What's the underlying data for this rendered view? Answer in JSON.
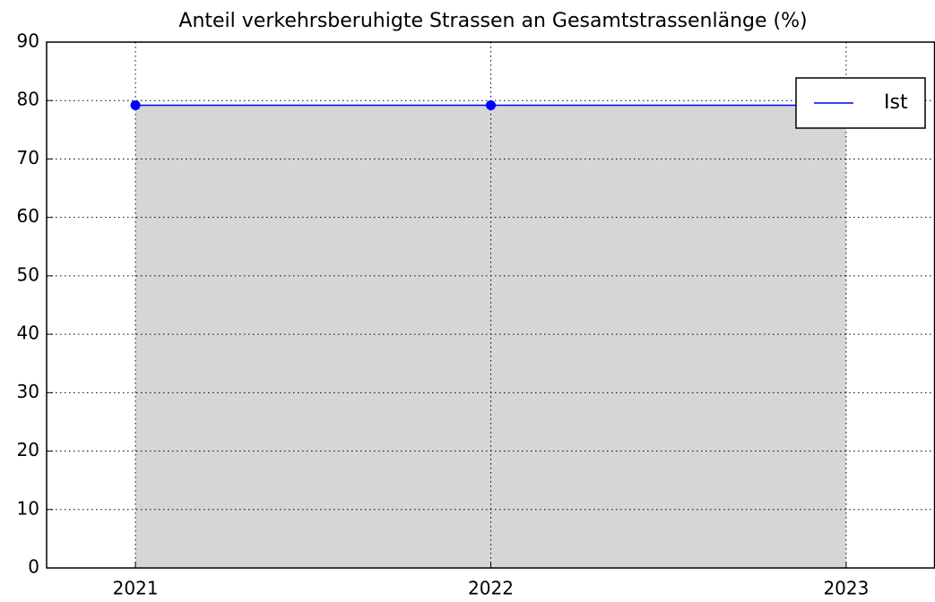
{
  "chart_data": {
    "type": "line",
    "title": "Anteil verkehrsberuhigte Strassen an Gesamtstrassenlänge (%)",
    "x": [
      2021,
      2022,
      2023
    ],
    "series": [
      {
        "name": "Ist",
        "color": "#0000ff",
        "values": [
          79.2,
          79.2,
          79.2
        ]
      }
    ],
    "fill_color": "#d6d6d6",
    "xlim": [
      2020.75,
      2023.25
    ],
    "xticks": [
      2021,
      2022,
      2023
    ],
    "ylim": [
      0,
      90
    ],
    "yticks": [
      0,
      10,
      20,
      30,
      40,
      50,
      60,
      70,
      80,
      90
    ],
    "grid": true,
    "legend": "upper right"
  }
}
